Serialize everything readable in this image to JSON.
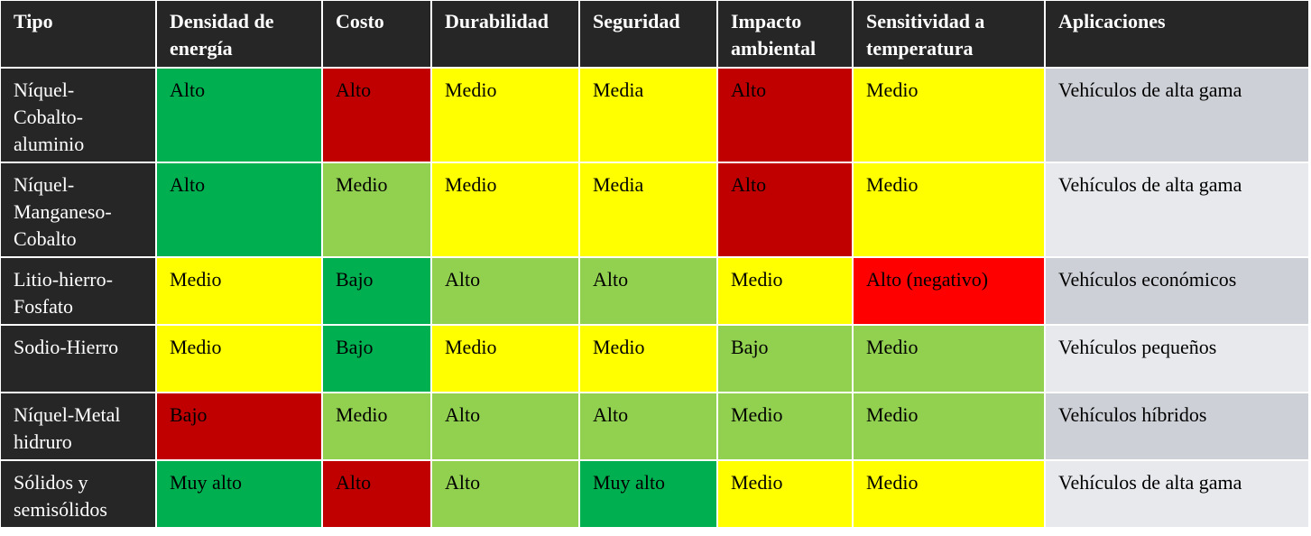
{
  "colors": {
    "header_bg": "#262626",
    "dark_green": "#00b050",
    "light_green": "#92d050",
    "yellow": "#ffff00",
    "dark_red": "#c00000",
    "red": "#ff0000",
    "gray_a": "#cdd0d6",
    "gray_b": "#e7e9ec"
  },
  "table": {
    "headers": [
      "Tipo",
      "Densidad de energía",
      "Costo",
      "Durabilidad",
      "Seguridad",
      "Impacto ambiental",
      "Sensitividad a temperatura",
      "Aplicaciones"
    ],
    "rows": [
      {
        "tipo": "Níquel-Cobalto-aluminio",
        "densidad": "Alto",
        "costo": "Alto",
        "durabilidad": "Medio",
        "seguridad": "Media",
        "impacto": "Alto",
        "sensitividad": "Medio",
        "aplicaciones": "Vehículos de alta gama"
      },
      {
        "tipo": "Níquel-Manganeso-Cobalto",
        "densidad": "Alto",
        "costo": "Medio",
        "durabilidad": "Medio",
        "seguridad": "Media",
        "impacto": "Alto",
        "sensitividad": "Medio",
        "aplicaciones": "Vehículos de alta gama"
      },
      {
        "tipo": "Litio-hierro-Fosfato",
        "densidad": "Medio",
        "costo": "Bajo",
        "durabilidad": "Alto",
        "seguridad": "Alto",
        "impacto": "Medio",
        "sensitividad": "Alto (negativo)",
        "aplicaciones": "Vehículos económicos"
      },
      {
        "tipo": "Sodio-Hierro",
        "densidad": "Medio",
        "costo": "Bajo",
        "durabilidad": "Medio",
        "seguridad": "Medio",
        "impacto": "Bajo",
        "sensitividad": "Medio",
        "aplicaciones": "Vehículos pequeños"
      },
      {
        "tipo": "Níquel-Metal hidruro",
        "densidad": "Bajo",
        "costo": "Medio",
        "durabilidad": "Alto",
        "seguridad": "Alto",
        "impacto": "Medio",
        "sensitividad": "Medio",
        "aplicaciones": "Vehículos híbridos"
      },
      {
        "tipo": "Sólidos y semisólidos",
        "densidad": "Muy alto",
        "costo": "Alto",
        "durabilidad": "Alto",
        "seguridad": "Muy alto",
        "impacto": "Medio",
        "sensitividad": "Medio",
        "aplicaciones": "Vehículos de alta gama"
      }
    ]
  }
}
